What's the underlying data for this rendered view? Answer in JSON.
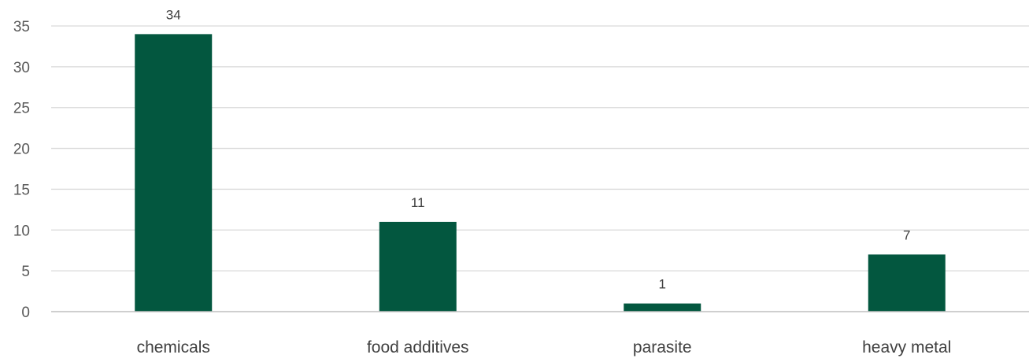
{
  "chart_data": {
    "type": "bar",
    "categories": [
      "chemicals",
      "food additives",
      "parasite",
      "heavy metal"
    ],
    "values": [
      34,
      11,
      1,
      7
    ],
    "data_labels": [
      "34",
      "11",
      "1",
      "7"
    ],
    "title": "",
    "xlabel": "",
    "ylabel": "",
    "ylim": [
      0,
      35
    ],
    "yticks": [
      0,
      5,
      10,
      15,
      20,
      25,
      30,
      35
    ],
    "grid": true,
    "legend": "none",
    "colors": {
      "bar": "#03573F",
      "grid": "#D9D9D9",
      "axis": "#BFBFBF"
    }
  }
}
